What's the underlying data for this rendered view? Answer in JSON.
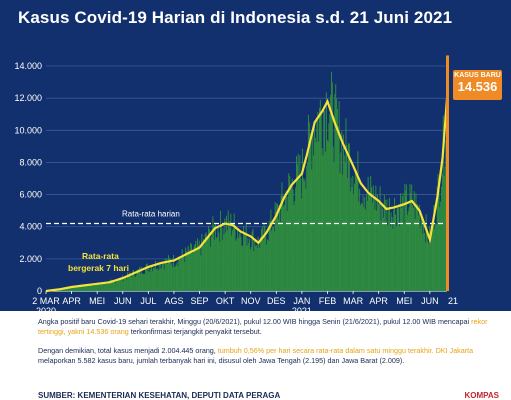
{
  "title": "Kasus Covid-19 Harian di Indonesia s.d. 21 Juni 2021",
  "badge": {
    "label": "KASUS BARU",
    "value": "14.536"
  },
  "annotations": {
    "avg_label": "Rata-rata harian",
    "rolling_line1": "Rata-rata",
    "rolling_line2": "bergerak 7 hari"
  },
  "colors": {
    "background": "#12306d",
    "bars": "#2e8b3f",
    "line": "#f5e23a",
    "accent": "#f08a24",
    "highlight": "#e8a317"
  },
  "notes": {
    "p1_a": "Angka positif baru Covid-19 sehari terakhir, Minggu (20/6/2021), pukul 12.00 WIB hingga Senin (21/6/2021), pukul 12.00 WIB mencapai ",
    "p1_hl": "rekor tertinggi, yakni 14.536 orang",
    "p1_b": " terkonfirmasi terjangkit penyakit tersebut.",
    "p2_a": "Dengan demikian, total kasus menjadi 2.004.445 orang, ",
    "p2_hl": "tumbuh 0,56% per hari secara rata-rata dalam satu minggu terakhir.",
    "p2_hl2": "DKI Jakarta",
    "p2_b": " melaporkan 5.582 kasus baru, jumlah terbanyak hari ini, disusul oleh Jawa Tengah (2.195) dan Jawa Barat (2.009).",
    "source": "SUMBER: KEMENTERIAN KESEHATAN, DEPUTI DATA PERAGA",
    "logo": "KOMPAS"
  },
  "chart_data": {
    "type": "bar",
    "title": "Kasus Covid-19 Harian di Indonesia s.d. 21 Juni 2021",
    "xlabel": "",
    "ylabel": "",
    "ylim": [
      0,
      14500
    ],
    "grid": true,
    "y_ticks": [
      "0",
      "2.000",
      "4.000",
      "6.000",
      "8.000",
      "10.000",
      "12.000",
      "14.000"
    ],
    "y_tick_values": [
      0,
      2000,
      4000,
      6000,
      8000,
      10000,
      12000,
      14000
    ],
    "x_ticks": [
      "2 MAR",
      "APR",
      "MEI",
      "JUN",
      "JUL",
      "AGS",
      "SEP",
      "OKT",
      "NOV",
      "DES",
      "JAN",
      "FEB",
      "MAR",
      "APR",
      "MEI",
      "JUN"
    ],
    "x_tick_sub": {
      "0": "2020",
      "10": "2021"
    },
    "end_tick": "21",
    "x_tick_months": [
      0,
      1,
      2,
      3,
      4,
      5,
      6,
      7,
      8,
      9,
      10,
      11,
      12,
      13,
      14,
      15
    ],
    "x_month_range": [
      0,
      15.67
    ],
    "average": 4200,
    "series": [
      {
        "name": "Rata-rata bergerak 7 hari",
        "x": [
          0,
          0.5,
          1,
          1.5,
          2,
          2.5,
          3,
          3.5,
          4,
          4.5,
          5,
          5.5,
          6,
          6.3,
          6.6,
          7,
          7.3,
          7.6,
          8,
          8.3,
          8.6,
          9,
          9.3,
          9.6,
          10,
          10.2,
          10.5,
          10.8,
          11,
          11.3,
          11.6,
          12,
          12.3,
          12.6,
          13,
          13.3,
          13.6,
          14,
          14.3,
          14.6,
          15,
          15.3,
          15.5,
          15.67
        ],
        "values": [
          0,
          100,
          250,
          350,
          450,
          550,
          800,
          1150,
          1500,
          1750,
          1900,
          2300,
          2700,
          3300,
          3900,
          4200,
          4100,
          3700,
          3400,
          3000,
          3600,
          4700,
          5800,
          6600,
          7300,
          8500,
          10500,
          11200,
          11800,
          10400,
          9200,
          7800,
          6700,
          6100,
          5600,
          5100,
          5200,
          5400,
          5600,
          5000,
          3200,
          5900,
          8300,
          12000
        ]
      }
    ],
    "last_value": 14536
  }
}
